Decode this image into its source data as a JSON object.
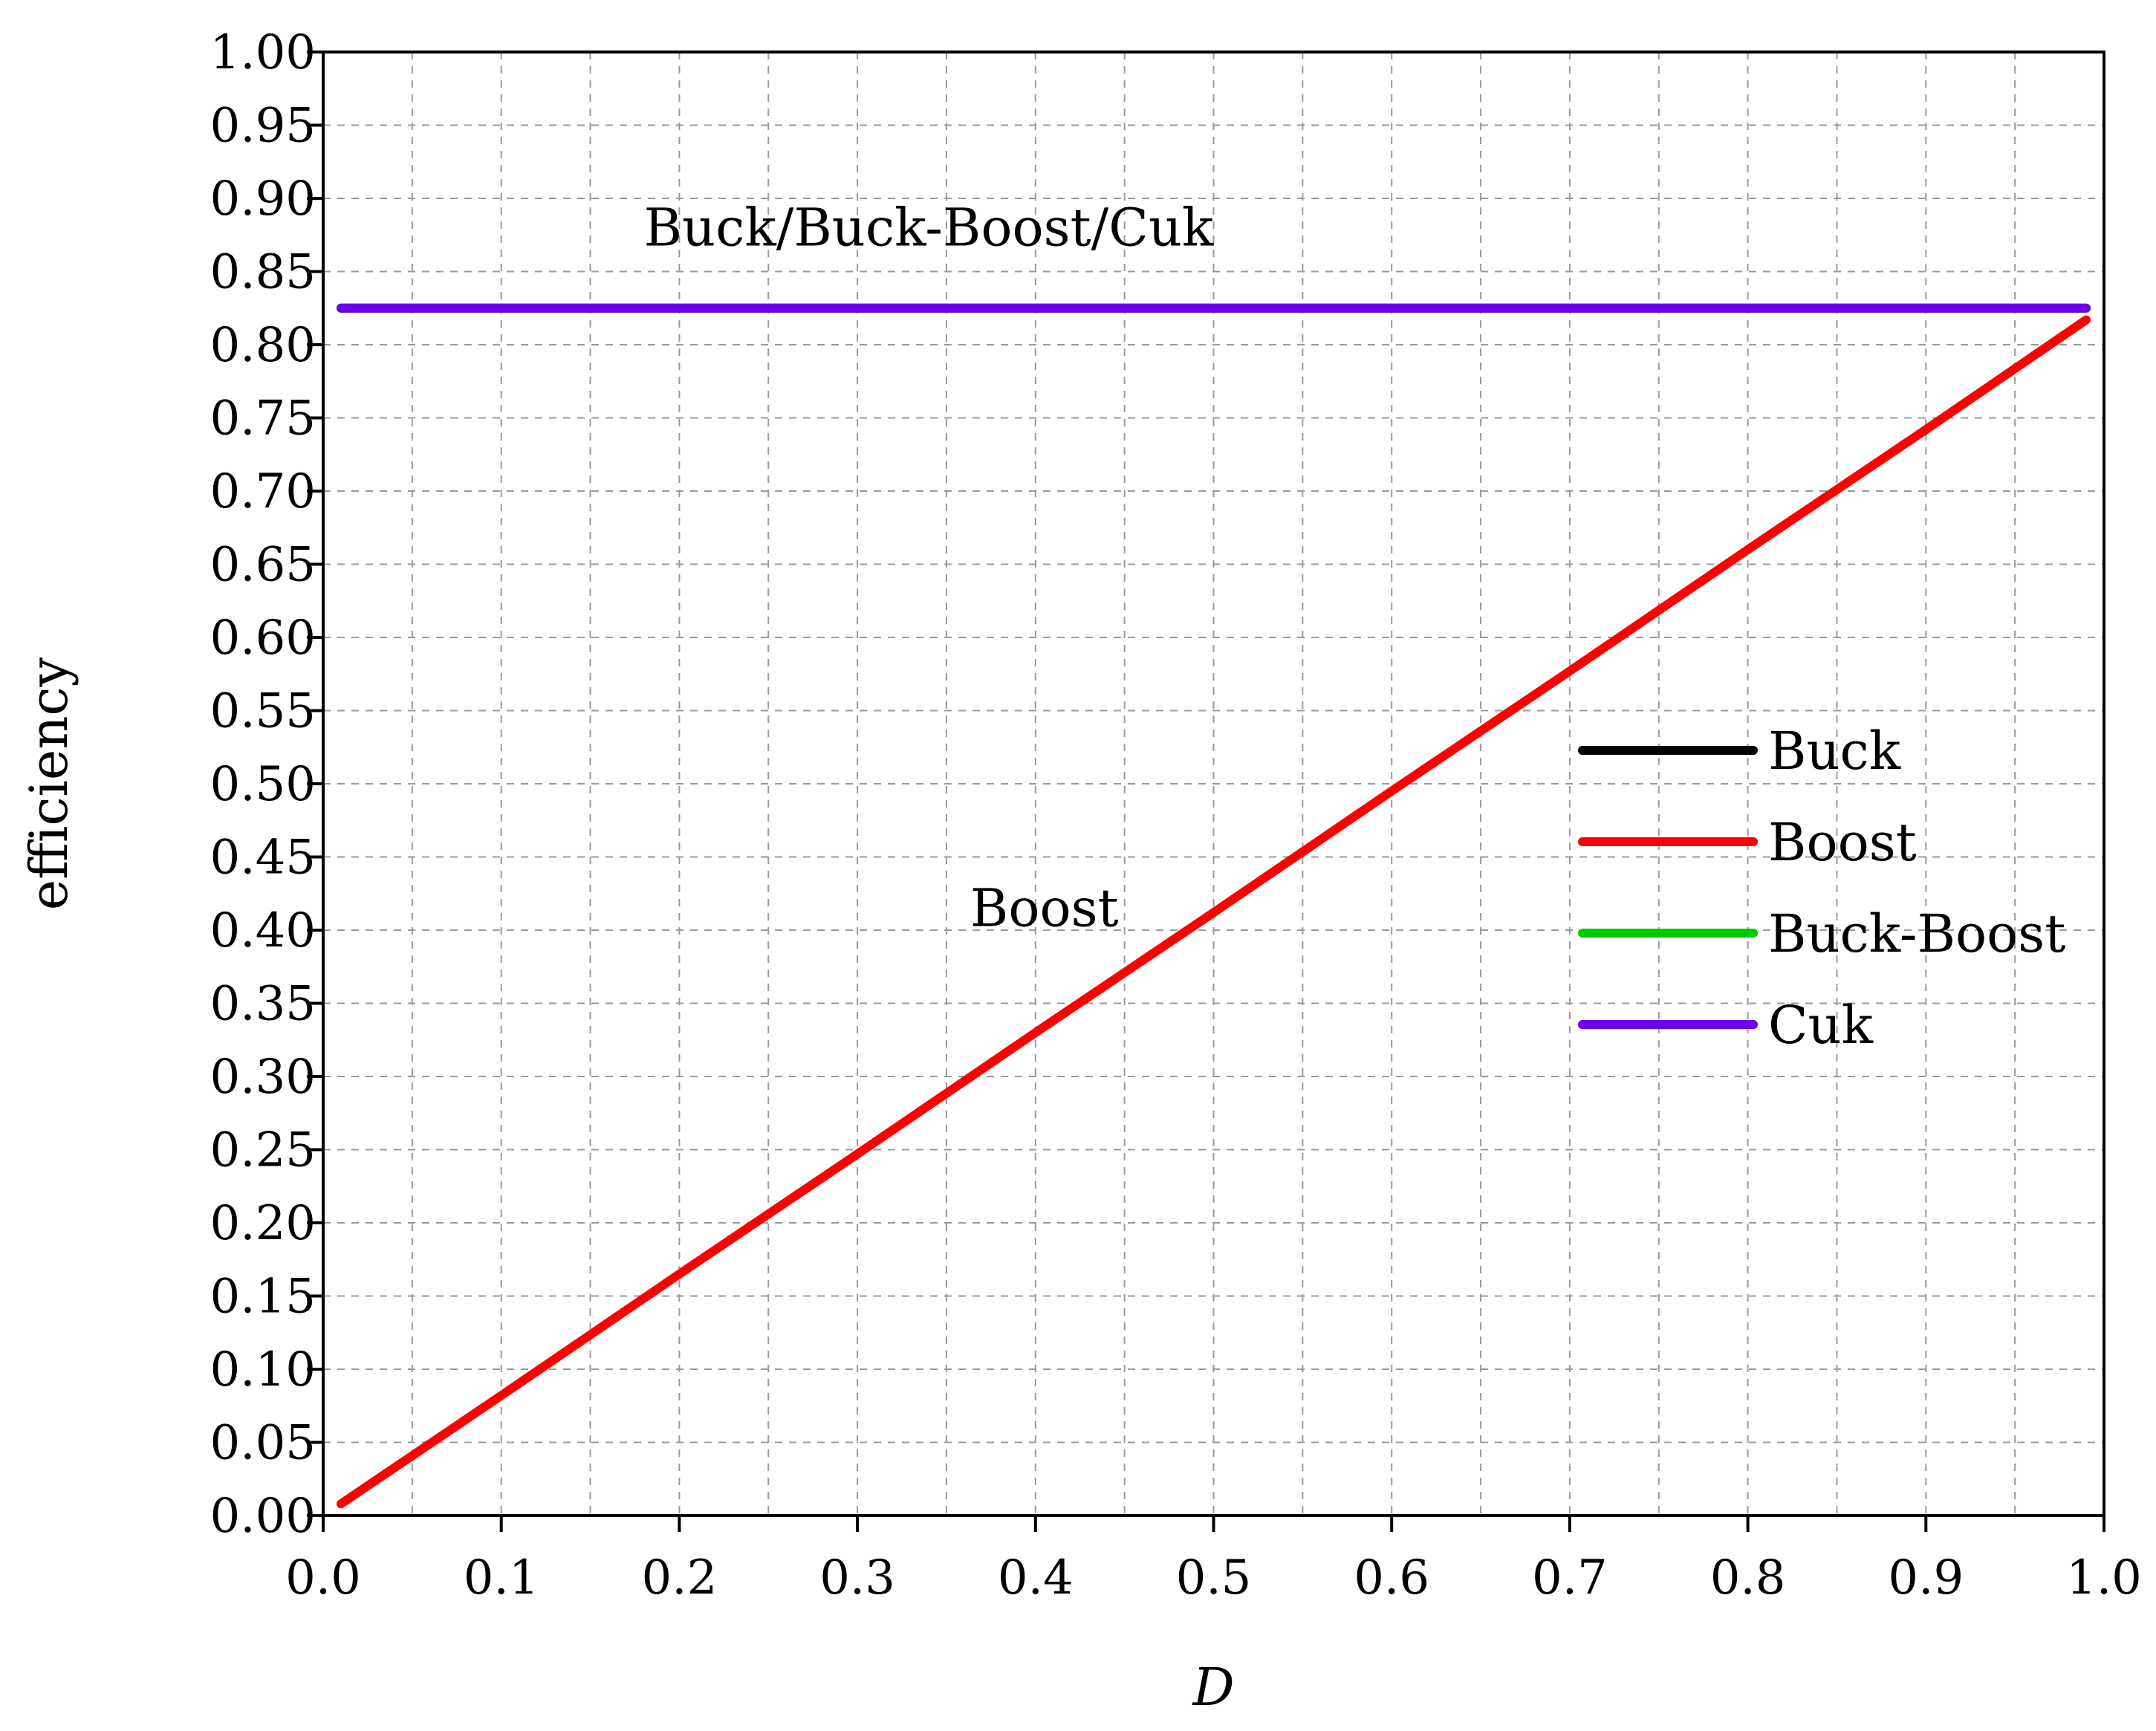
{
  "chart_data": {
    "type": "line",
    "xlabel": "D",
    "ylabel": "efficiency",
    "xlim": [
      0.0,
      1.0
    ],
    "ylim": [
      0.0,
      1.0
    ],
    "x_ticks": [
      "0.0",
      "0.1",
      "0.2",
      "0.3",
      "0.4",
      "0.5",
      "0.6",
      "0.7",
      "0.8",
      "0.9",
      "1.0"
    ],
    "y_ticks": [
      "0.00",
      "0.05",
      "0.10",
      "0.15",
      "0.20",
      "0.25",
      "0.30",
      "0.35",
      "0.40",
      "0.45",
      "0.50",
      "0.55",
      "0.60",
      "0.65",
      "0.70",
      "0.75",
      "0.80",
      "0.85",
      "0.90",
      "0.95",
      "1.00"
    ],
    "grid": true,
    "grid_style": "dashed",
    "legend_position": "right-middle",
    "series": [
      {
        "name": "Buck",
        "color": "#000000",
        "x": [
          0.01,
          0.99
        ],
        "y": [
          0.825,
          0.825
        ]
      },
      {
        "name": "Boost",
        "color": "#ff0000",
        "x": [
          0.01,
          0.1,
          0.2,
          0.3,
          0.4,
          0.5,
          0.6,
          0.7,
          0.8,
          0.9,
          0.99
        ],
        "y": [
          0.008,
          0.082,
          0.165,
          0.247,
          0.33,
          0.412,
          0.495,
          0.577,
          0.66,
          0.742,
          0.817
        ]
      },
      {
        "name": "Buck-Boost",
        "color": "#00cc00",
        "x": [
          0.01,
          0.99
        ],
        "y": [
          0.825,
          0.825
        ]
      },
      {
        "name": "Cuk",
        "color": "#6a00ee",
        "x": [
          0.01,
          0.99
        ],
        "y": [
          0.825,
          0.825
        ]
      }
    ],
    "annotations": [
      {
        "text": "Buck/Buck-Boost/Cuk",
        "x": 0.34,
        "y": 0.88
      },
      {
        "text": "Boost",
        "x": 0.405,
        "y": 0.415
      }
    ]
  }
}
